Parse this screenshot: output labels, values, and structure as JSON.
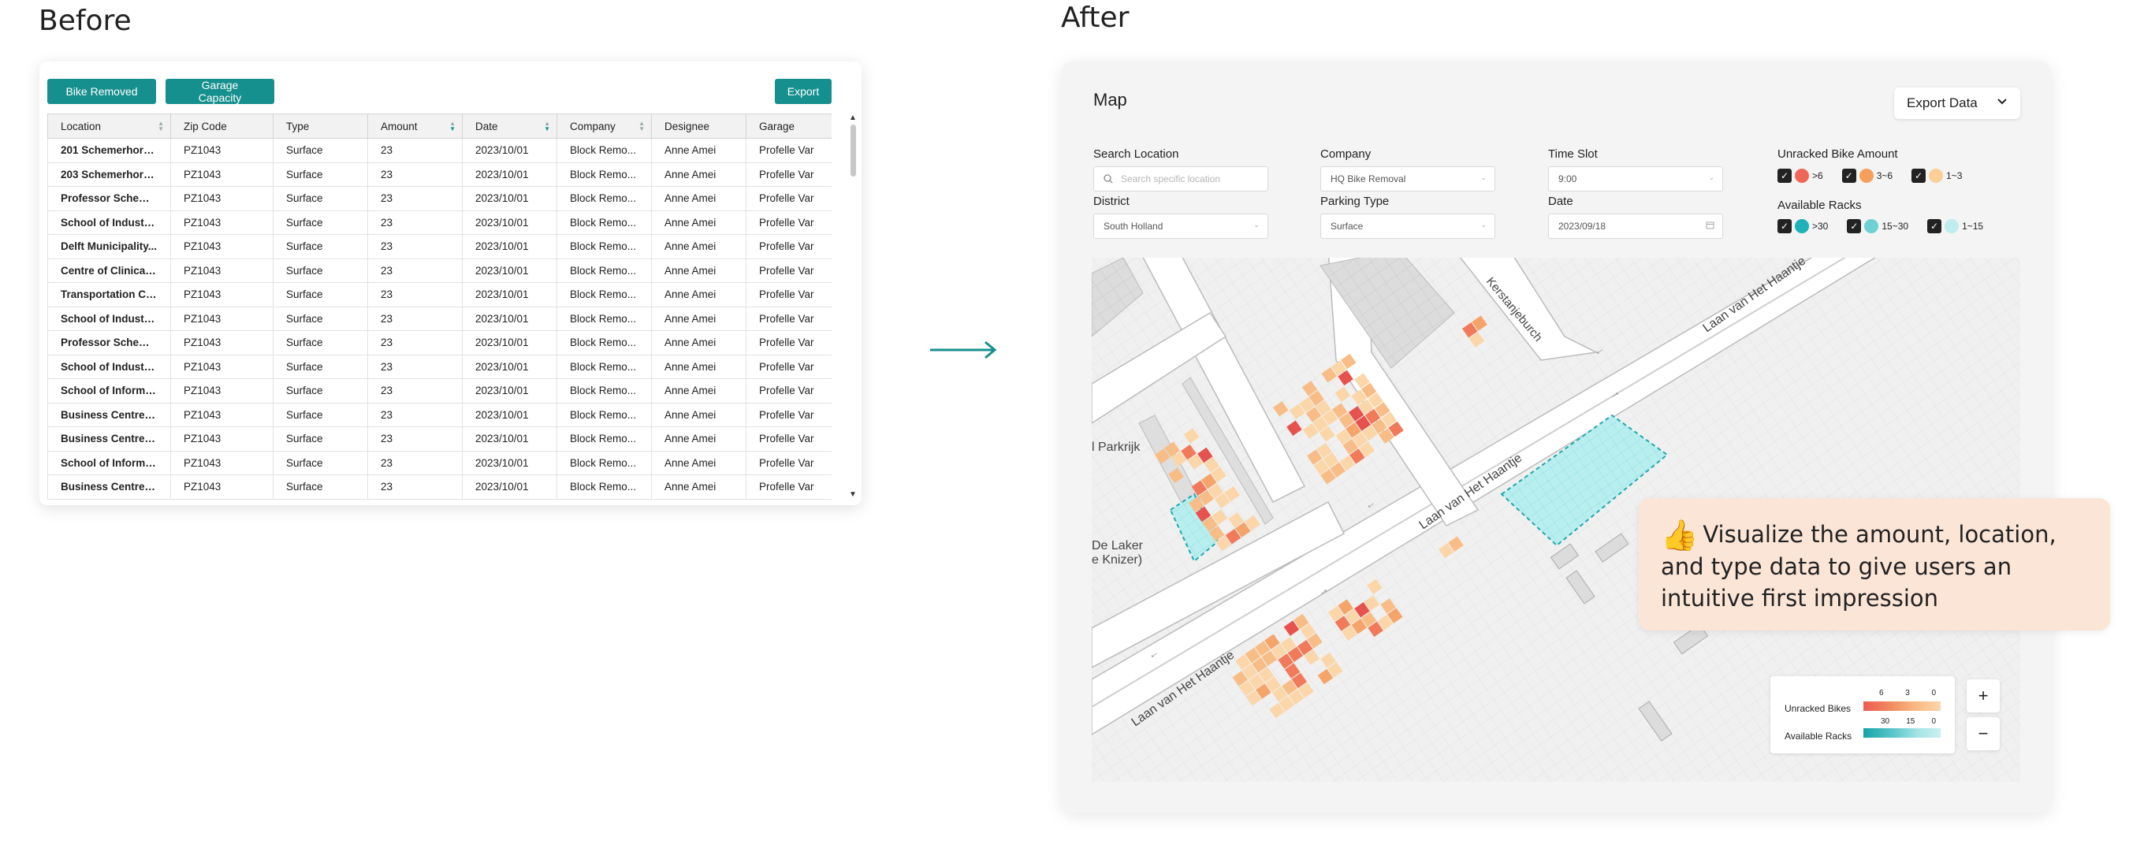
{
  "headings": {
    "before": "Before",
    "after": "After"
  },
  "before": {
    "buttons": {
      "bike_removed": "Bike Removed",
      "garage_capacity": "Garage Capacity",
      "export": "Export"
    },
    "columns": [
      "Location",
      "Zip Code",
      "Type",
      "Amount",
      "Date",
      "Company",
      "Designee",
      "Garage"
    ],
    "rows": [
      [
        "201 Schemerhorn...",
        "PZ1043",
        "Surface",
        "23",
        "2023/10/01",
        "Block Remo...",
        "Anne Amei",
        "Profelle Var"
      ],
      [
        "203 Schemerhorn...",
        "PZ1043",
        "Surface",
        "23",
        "2023/10/01",
        "Block Remo...",
        "Anne Amei",
        "Profelle Var"
      ],
      [
        "Professor Scheme...",
        "PZ1043",
        "Surface",
        "23",
        "2023/10/01",
        "Block Remo...",
        "Anne Amei",
        "Profelle Var"
      ],
      [
        "School of Industri...",
        "PZ1043",
        "Surface",
        "23",
        "2023/10/01",
        "Block Remo...",
        "Anne Amei",
        "Profelle Var"
      ],
      [
        "Delft Municipality...",
        "PZ1043",
        "Surface",
        "23",
        "2023/10/01",
        "Block Remo...",
        "Anne Amei",
        "Profelle Var"
      ],
      [
        "Centre of Clinical ...",
        "PZ1043",
        "Surface",
        "23",
        "2023/10/01",
        "Block Remo...",
        "Anne Amei",
        "Profelle Var"
      ],
      [
        "Transportation Ce...",
        "PZ1043",
        "Surface",
        "23",
        "2023/10/01",
        "Block Remo...",
        "Anne Amei",
        "Profelle Var"
      ],
      [
        "School of Industri...",
        "PZ1043",
        "Surface",
        "23",
        "2023/10/01",
        "Block Remo...",
        "Anne Amei",
        "Profelle Var"
      ],
      [
        "Professor Scheme...",
        "PZ1043",
        "Surface",
        "23",
        "2023/10/01",
        "Block Remo...",
        "Anne Amei",
        "Profelle Var"
      ],
      [
        "School of Industri...",
        "PZ1043",
        "Surface",
        "23",
        "2023/10/01",
        "Block Remo...",
        "Anne Amei",
        "Profelle Var"
      ],
      [
        "School of Informa...",
        "PZ1043",
        "Surface",
        "23",
        "2023/10/01",
        "Block Remo...",
        "Anne Amei",
        "Profelle Var"
      ],
      [
        "Business Centre A...",
        "PZ1043",
        "Surface",
        "23",
        "2023/10/01",
        "Block Remo...",
        "Anne Amei",
        "Profelle Var"
      ],
      [
        "Business Centre A...",
        "PZ1043",
        "Surface",
        "23",
        "2023/10/01",
        "Block Remo...",
        "Anne Amei",
        "Profelle Var"
      ],
      [
        "School of Informa...",
        "PZ1043",
        "Surface",
        "23",
        "2023/10/01",
        "Block Remo...",
        "Anne Amei",
        "Profelle Var"
      ],
      [
        "Business Centre A...",
        "PZ1043",
        "Surface",
        "23",
        "2023/10/01",
        "Block Remo...",
        "Anne Amei",
        "Profelle Var"
      ]
    ]
  },
  "after": {
    "title": "Map",
    "export_data": "Export Data",
    "filters": {
      "search_location": {
        "label": "Search Location",
        "placeholder": "Search specific location"
      },
      "district": {
        "label": "District",
        "value": "South Holland"
      },
      "company": {
        "label": "Company",
        "value": "HQ Bike Removal"
      },
      "parking_type": {
        "label": "Parking Type",
        "value": "Surface"
      },
      "time_slot": {
        "label": "Time Slot",
        "value": "9:00"
      },
      "date": {
        "label": "Date",
        "value": "2023/09/18"
      }
    },
    "unracked": {
      "label": "Unracked Bike Amount",
      "items": [
        ">6",
        "3~6",
        "1~3"
      ],
      "colors": [
        "#f0675a",
        "#f5a05a",
        "#fbcf97"
      ]
    },
    "available": {
      "label": "Available Racks",
      "items": [
        ">30",
        "15~30",
        "1~15"
      ],
      "colors": [
        "#1fb2b6",
        "#6dd1d4",
        "#bfeced"
      ]
    },
    "street_labels": [
      "Kerstanjeburch",
      "Laan van Het Haantje",
      "Laan van Het Haantje",
      "Laan van Het Haantje",
      "l Parkrijk",
      "De Laker",
      "e Knizer)"
    ],
    "callout": "Visualize the amount, location, and type data to give users an intuitive first impression",
    "map_legend": {
      "unracked_label": "Unracked Bikes",
      "unracked_ticks": [
        "6",
        "3",
        "0"
      ],
      "available_label": "Available Racks",
      "available_ticks": [
        "30",
        "15",
        "0"
      ]
    },
    "zoom": {
      "in": "+",
      "out": "−"
    }
  }
}
